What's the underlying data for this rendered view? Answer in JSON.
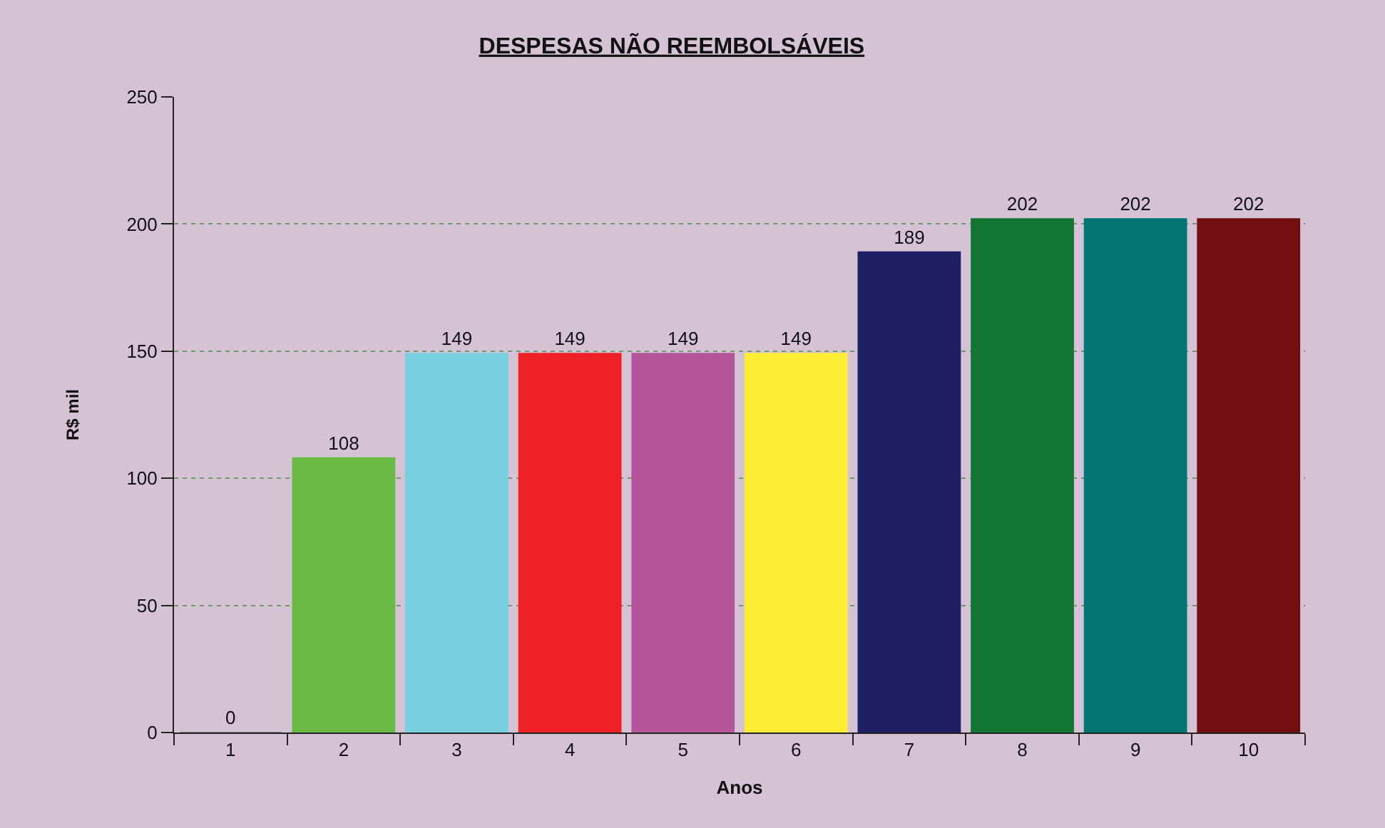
{
  "chart_data": {
    "type": "bar",
    "title": "DESPESAS NÃO REEMBOLSÁVEIS",
    "xlabel": "Anos",
    "ylabel": "R$ mil",
    "categories": [
      "1",
      "2",
      "3",
      "4",
      "5",
      "6",
      "7",
      "8",
      "9",
      "10"
    ],
    "values": [
      0,
      108,
      149,
      149,
      149,
      149,
      189,
      202,
      202,
      202
    ],
    "colors": [
      "#808080",
      "#6aba45",
      "#78cfdf",
      "#ee2024",
      "#b5559a",
      "#fdec35",
      "#1f1f63",
      "#127632",
      "#007571",
      "#720e10"
    ],
    "ylim": [
      0,
      250
    ],
    "yticks": [
      0,
      50,
      100,
      150,
      200,
      250
    ],
    "grid": "y",
    "data_labels": true,
    "legend": false
  }
}
